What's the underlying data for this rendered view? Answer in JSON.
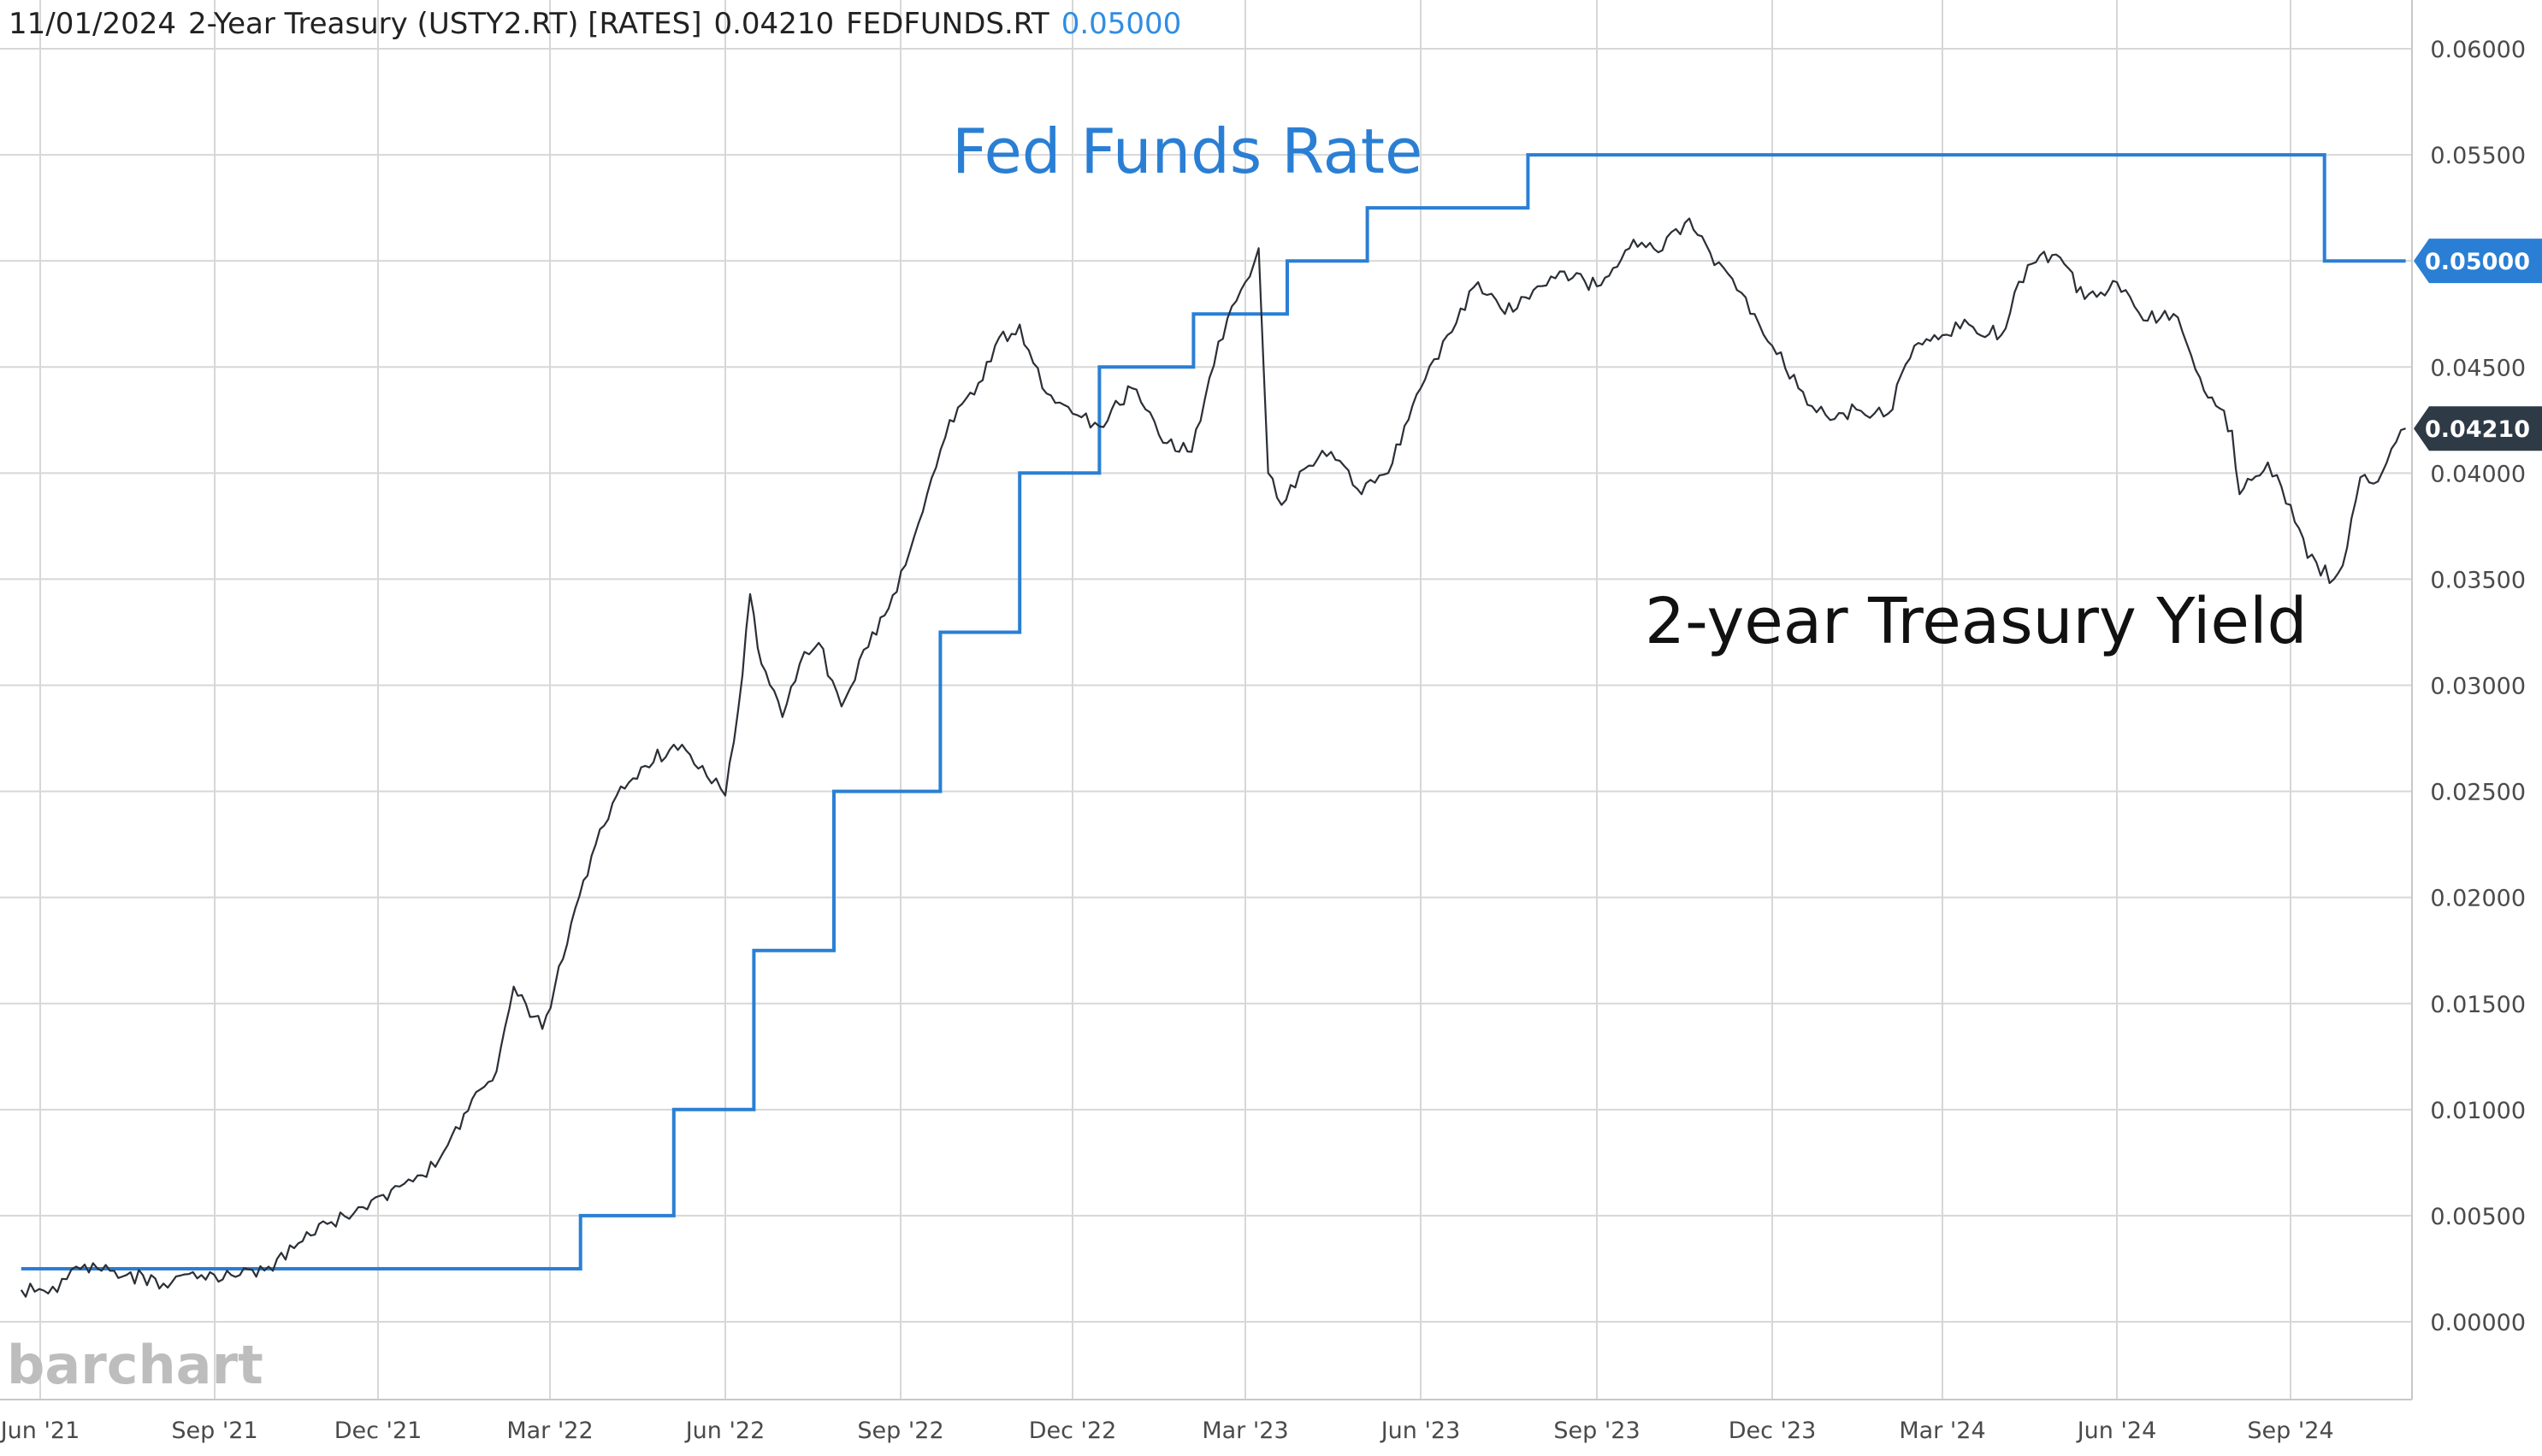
{
  "header": {
    "date": "11/01/2024",
    "series1_title": "2-Year Treasury (USTY2.RT) [RATES]",
    "series1_value": "0.04210",
    "series2_symbol": "FEDFUNDS.RT",
    "series2_value": "0.05000"
  },
  "annotations": {
    "fed_funds": "Fed Funds Rate",
    "treasury": "2-year Treasury Yield"
  },
  "branding": {
    "logo": "barchart"
  },
  "colors": {
    "fed_funds": "#2a7fd4",
    "treasury": "#2b2f36",
    "grid": "#d7d7d7",
    "fed_badge": "#2a7fd4",
    "treasury_badge": "#2e3a45"
  },
  "chart_data": {
    "type": "line",
    "title": "",
    "xlabel": "",
    "ylabel": "",
    "x_ticks": [
      "Jun '21",
      "Sep '21",
      "Dec '21",
      "Mar '22",
      "Jun '22",
      "Sep '22",
      "Dec '22",
      "Mar '23",
      "Jun '23",
      "Sep '23",
      "Dec '23",
      "Mar '24",
      "Jun '24",
      "Sep '24"
    ],
    "y_ticks": [
      "0.00000",
      "0.00500",
      "0.01000",
      "0.01500",
      "0.02000",
      "0.02500",
      "0.03000",
      "0.03500",
      "0.04000",
      "0.04500",
      "0.05000",
      "0.05500",
      "0.06000"
    ],
    "ylim": [
      -0.0036,
      0.0625
    ],
    "xlim": [
      "2021-05-22",
      "2024-11-08"
    ],
    "grid": true,
    "series": [
      {
        "name": "FEDFUNDS.RT",
        "last_value": "0.05000",
        "points": [
          [
            "2021-05-22",
            0.0025
          ],
          [
            "2022-03-17",
            0.0025
          ],
          [
            "2022-03-17",
            0.005
          ],
          [
            "2022-05-05",
            0.005
          ],
          [
            "2022-05-05",
            0.01
          ],
          [
            "2022-06-16",
            0.01
          ],
          [
            "2022-06-16",
            0.0175
          ],
          [
            "2022-07-28",
            0.0175
          ],
          [
            "2022-07-28",
            0.025
          ],
          [
            "2022-09-22",
            0.025
          ],
          [
            "2022-09-22",
            0.0325
          ],
          [
            "2022-11-03",
            0.0325
          ],
          [
            "2022-11-03",
            0.04
          ],
          [
            "2022-12-15",
            0.04
          ],
          [
            "2022-12-15",
            0.045
          ],
          [
            "2023-02-02",
            0.045
          ],
          [
            "2023-02-02",
            0.0475
          ],
          [
            "2023-03-23",
            0.0475
          ],
          [
            "2023-03-23",
            0.05
          ],
          [
            "2023-05-04",
            0.05
          ],
          [
            "2023-05-04",
            0.0525
          ],
          [
            "2023-07-27",
            0.0525
          ],
          [
            "2023-07-27",
            0.055
          ],
          [
            "2024-09-19",
            0.055
          ],
          [
            "2024-09-19",
            0.05
          ],
          [
            "2024-11-01",
            0.05
          ]
        ]
      },
      {
        "name": "USTY2.RT",
        "last_value": "0.04210",
        "points": [
          [
            "2021-05-22",
            0.0015
          ],
          [
            "2021-06-10",
            0.0014
          ],
          [
            "2021-06-20",
            0.0026
          ],
          [
            "2021-07-10",
            0.0024
          ],
          [
            "2021-08-05",
            0.0018
          ],
          [
            "2021-08-25",
            0.0022
          ],
          [
            "2021-09-15",
            0.0022
          ],
          [
            "2021-10-01",
            0.0026
          ],
          [
            "2021-10-20",
            0.0038
          ],
          [
            "2021-11-05",
            0.0047
          ],
          [
            "2021-11-25",
            0.0053
          ],
          [
            "2021-12-10",
            0.0064
          ],
          [
            "2021-12-31",
            0.0073
          ],
          [
            "2022-01-15",
            0.0098
          ],
          [
            "2022-02-01",
            0.0118
          ],
          [
            "2022-02-10",
            0.0158
          ],
          [
            "2022-02-25",
            0.0138
          ],
          [
            "2022-03-10",
            0.0178
          ],
          [
            "2022-03-25",
            0.0225
          ],
          [
            "2022-04-05",
            0.0248
          ],
          [
            "2022-04-20",
            0.0262
          ],
          [
            "2022-05-05",
            0.0272
          ],
          [
            "2022-05-20",
            0.0262
          ],
          [
            "2022-06-01",
            0.0248
          ],
          [
            "2022-06-10",
            0.0305
          ],
          [
            "2022-06-14",
            0.0343
          ],
          [
            "2022-06-20",
            0.031
          ],
          [
            "2022-07-01",
            0.0285
          ],
          [
            "2022-07-10",
            0.031
          ],
          [
            "2022-07-20",
            0.032
          ],
          [
            "2022-08-01",
            0.029
          ],
          [
            "2022-08-15",
            0.0318
          ],
          [
            "2022-08-30",
            0.0344
          ],
          [
            "2022-09-15",
            0.039
          ],
          [
            "2022-09-27",
            0.0425
          ],
          [
            "2022-10-10",
            0.0437
          ],
          [
            "2022-10-21",
            0.046
          ],
          [
            "2022-11-03",
            0.047
          ],
          [
            "2022-11-15",
            0.044
          ],
          [
            "2022-12-01",
            0.0428
          ],
          [
            "2022-12-15",
            0.0422
          ],
          [
            "2023-01-01",
            0.044
          ],
          [
            "2023-01-15",
            0.0418
          ],
          [
            "2023-02-01",
            0.041
          ],
          [
            "2023-02-15",
            0.0462
          ],
          [
            "2023-03-01",
            0.049
          ],
          [
            "2023-03-08",
            0.0506
          ],
          [
            "2023-03-13",
            0.04
          ],
          [
            "2023-03-20",
            0.0385
          ],
          [
            "2023-04-01",
            0.0402
          ],
          [
            "2023-04-15",
            0.041
          ],
          [
            "2023-05-01",
            0.039
          ],
          [
            "2023-05-15",
            0.04
          ],
          [
            "2023-06-01",
            0.044
          ],
          [
            "2023-06-15",
            0.0465
          ],
          [
            "2023-07-01",
            0.049
          ],
          [
            "2023-07-15",
            0.0475
          ],
          [
            "2023-08-01",
            0.0488
          ],
          [
            "2023-08-15",
            0.0495
          ],
          [
            "2023-09-01",
            0.0488
          ],
          [
            "2023-09-20",
            0.051
          ],
          [
            "2023-10-05",
            0.0505
          ],
          [
            "2023-10-19",
            0.052
          ],
          [
            "2023-11-01",
            0.0498
          ],
          [
            "2023-11-15",
            0.0485
          ],
          [
            "2023-12-01",
            0.046
          ],
          [
            "2023-12-15",
            0.044
          ],
          [
            "2024-01-01",
            0.0425
          ],
          [
            "2024-01-15",
            0.043
          ],
          [
            "2024-02-01",
            0.0428
          ],
          [
            "2024-02-15",
            0.046
          ],
          [
            "2024-03-01",
            0.0465
          ],
          [
            "2024-03-15",
            0.047
          ],
          [
            "2024-04-01",
            0.0465
          ],
          [
            "2024-04-15",
            0.0498
          ],
          [
            "2024-04-30",
            0.0503
          ],
          [
            "2024-05-15",
            0.0482
          ],
          [
            "2024-06-01",
            0.049
          ],
          [
            "2024-06-15",
            0.0472
          ],
          [
            "2024-07-01",
            0.0475
          ],
          [
            "2024-07-15",
            0.0445
          ],
          [
            "2024-08-01",
            0.042
          ],
          [
            "2024-08-05",
            0.039
          ],
          [
            "2024-08-20",
            0.0405
          ],
          [
            "2024-09-01",
            0.0385
          ],
          [
            "2024-09-10",
            0.036
          ],
          [
            "2024-09-24",
            0.035
          ],
          [
            "2024-10-01",
            0.0365
          ],
          [
            "2024-10-08",
            0.0398
          ],
          [
            "2024-10-15",
            0.0395
          ],
          [
            "2024-10-22",
            0.0405
          ],
          [
            "2024-11-01",
            0.0421
          ]
        ]
      }
    ]
  }
}
